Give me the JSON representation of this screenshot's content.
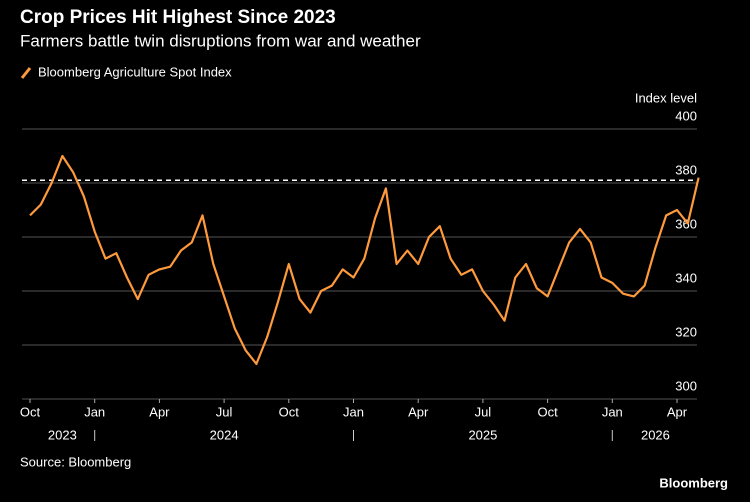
{
  "chart_data": {
    "type": "line",
    "title": "Crop Prices Hit Highest Since 2023",
    "subtitle": "Farmers battle twin disruptions from war and weather",
    "y_axis_label": "Index level",
    "source": "Source: Bloomberg",
    "brand": "Bloomberg",
    "categories": [
      "Oct",
      null,
      null,
      null,
      null,
      null,
      "Jan",
      null,
      null,
      null,
      null,
      null,
      "Apr",
      null,
      null,
      null,
      null,
      null,
      "Jul",
      null,
      null,
      null,
      null,
      null,
      "Oct",
      null,
      null,
      null,
      null,
      null,
      "Jan",
      null,
      null,
      null,
      null,
      null,
      "Apr",
      null,
      null,
      null,
      null,
      null,
      "Jul",
      null,
      null,
      null,
      null,
      null,
      "Oct",
      null,
      null,
      null,
      null,
      null,
      "Jan",
      null,
      null,
      null,
      null,
      null,
      "Apr",
      null,
      null
    ],
    "year_labels": [
      null,
      null,
      null,
      "2023",
      null,
      null,
      null,
      null,
      null,
      null,
      null,
      null,
      null,
      null,
      null,
      null,
      null,
      null,
      "2024",
      null,
      null,
      null,
      null,
      null,
      null,
      null,
      null,
      null,
      null,
      null,
      null,
      null,
      null,
      null,
      null,
      null,
      null,
      null,
      null,
      null,
      null,
      null,
      "2025",
      null,
      null,
      null,
      null,
      null,
      null,
      null,
      null,
      null,
      null,
      null,
      null,
      null,
      null,
      null,
      "2026",
      null,
      null,
      null,
      null
    ],
    "series": [
      {
        "name": "Bloomberg Agriculture Spot Index",
        "color": "#ff9a3c",
        "values": [
          368,
          372,
          380,
          390,
          384,
          375,
          362,
          352,
          354,
          345,
          337,
          346,
          348,
          349,
          355,
          358,
          368,
          350,
          338,
          326,
          318,
          313,
          323,
          336,
          350,
          337,
          332,
          340,
          342,
          348,
          345,
          352,
          367,
          378,
          350,
          355,
          350,
          360,
          364,
          352,
          346,
          348,
          340,
          335,
          329,
          345,
          350,
          341,
          338,
          348,
          358,
          363,
          358,
          345,
          343,
          339,
          338,
          342,
          356,
          368,
          370,
          365,
          382
        ]
      }
    ],
    "reference_line": 381,
    "ylim": [
      300,
      400
    ],
    "yticks": [
      300,
      320,
      340,
      360,
      380,
      400
    ],
    "grid": true
  }
}
